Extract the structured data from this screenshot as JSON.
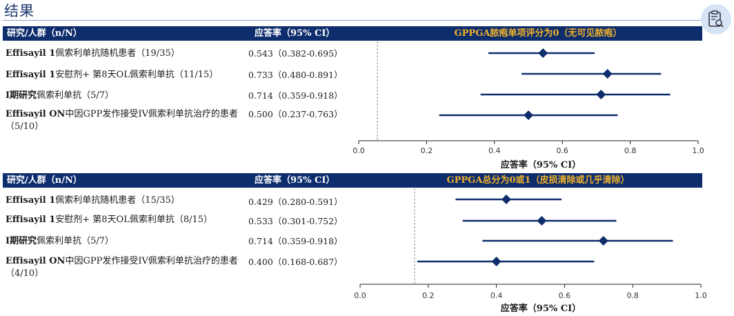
{
  "page": {
    "title": "结果"
  },
  "panels": [
    {
      "header": {
        "col1": "研究/人群（n/N）",
        "col2": "应答率（95% CI）",
        "col3": "GPPGA脓疱单项评分为0（无可见脓疱）"
      },
      "rows": [
        {
          "label_bold": "Effisayil 1",
          "label_rest": "佩索利单抗随机患者（19/35）",
          "ci_text": "0.543（0.382-0.695）"
        },
        {
          "label_bold": "Effisayil 1",
          "label_rest": "安慰剂+ 第8天OL佩索利单抗（11/15）",
          "ci_text": "0.733（0.480-0.891）"
        },
        {
          "label_bold": "I期研究",
          "label_rest": "佩索利单抗（5/7）",
          "ci_text": "0.714（0.359-0.918）"
        },
        {
          "label_bold": "Effisayil ON",
          "label_rest": "中因GPP发作接受IV佩索利单抗治疗的患者（5/10）",
          "ci_text": "0.500（0.237-0.763）"
        }
      ],
      "x_axis_label": "应答率（95% CI）"
    },
    {
      "header": {
        "col1": "研究/人群（n/N）",
        "col2": "应答率（95% CI）",
        "col3": "GPPGA总分为0或1（皮损清除或几乎清除）"
      },
      "rows": [
        {
          "label_bold": "Effisayil 1",
          "label_rest": "佩索利单抗随机患者（15/35）",
          "ci_text": "0.429（0.280-0.591）"
        },
        {
          "label_bold": "Effisayil 1",
          "label_rest": "安慰剂+ 第8天OL佩索利单抗（8/15）",
          "ci_text": "0.533（0.301-0.752）"
        },
        {
          "label_bold": "I期研究",
          "label_rest": "佩索利单抗（5/7）",
          "ci_text": "0.714（0.359-0.918）"
        },
        {
          "label_bold": "Effisayil ON",
          "label_rest": "中因GPP发作接受IV佩索利单抗治疗的患者（4/10）",
          "ci_text": "0.400（0.168-0.687）"
        }
      ],
      "x_axis_label": "应答率（95% CI）"
    }
  ],
  "colors": {
    "header_bg": "#0e2d6d",
    "header_highlight": "#f0b22a",
    "marker": "#0e2d6d"
  },
  "icons": {
    "top_right": "clipboard-search-icon"
  },
  "chart_data": [
    {
      "type": "forest",
      "title": "GPPGA脓疱单项评分为0（无可见脓疱）",
      "xlabel": "应答率（95% CI）",
      "xlim": [
        0,
        1
      ],
      "xticks": [
        "0.0",
        "0.2",
        "0.4",
        "0.6",
        "0.8",
        "1.0"
      ],
      "reference_line": 0.055,
      "categories": [
        "Effisayil 1佩索利单抗随机患者（19/35）",
        "Effisayil 1安慰剂+ 第8天OL佩索利单抗（11/15）",
        "I期研究佩索利单抗（5/7）",
        "Effisayil ON中因GPP发作接受IV佩索利单抗治疗的患者（5/10）"
      ],
      "estimate": [
        0.543,
        0.733,
        0.714,
        0.5
      ],
      "lower": [
        0.382,
        0.48,
        0.359,
        0.237
      ],
      "upper": [
        0.695,
        0.891,
        0.918,
        0.763
      ]
    },
    {
      "type": "forest",
      "title": "GPPGA总分为0或1（皮损清除或几乎清除）",
      "xlabel": "应答率（95% CI）",
      "xlim": [
        0,
        1
      ],
      "xticks": [
        "0.0",
        "0.2",
        "0.4",
        "0.6",
        "0.8",
        "1.0"
      ],
      "reference_line": 0.16,
      "categories": [
        "Effisayil 1佩索利单抗随机患者（15/35）",
        "Effisayil 1安慰剂+ 第8天OL佩索利单抗（8/15）",
        "I期研究佩索利单抗（5/7）",
        "Effisayil ON中因GPP发作接受IV佩索利单抗治疗的患者（4/10）"
      ],
      "estimate": [
        0.429,
        0.533,
        0.714,
        0.4
      ],
      "lower": [
        0.28,
        0.301,
        0.359,
        0.168
      ],
      "upper": [
        0.591,
        0.752,
        0.918,
        0.687
      ]
    }
  ]
}
